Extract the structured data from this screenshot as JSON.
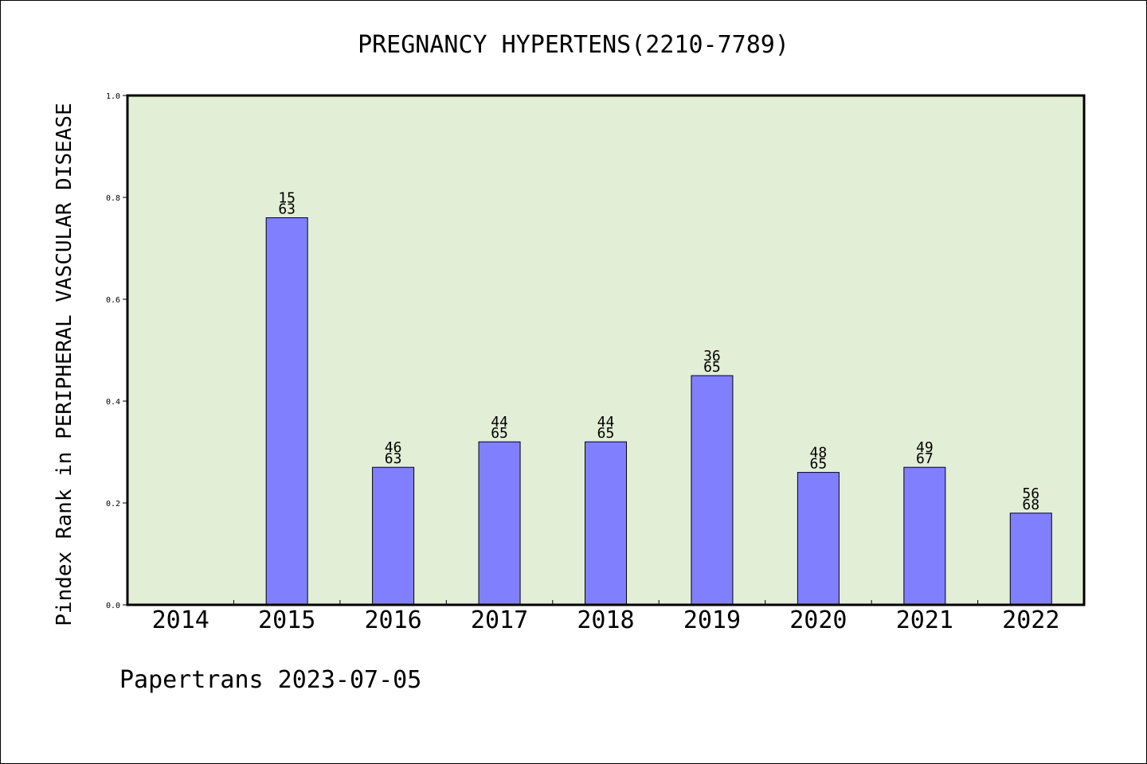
{
  "chart_data": {
    "type": "bar",
    "title": "PREGNANCY HYPERTENS(2210-7789)",
    "xlabel": "",
    "ylabel": "Pindex Rank in PERIPHERAL VASCULAR DISEASE",
    "categories": [
      "2014",
      "2015",
      "2016",
      "2017",
      "2018",
      "2019",
      "2020",
      "2021",
      "2022"
    ],
    "values": [
      null,
      0.76,
      0.27,
      0.32,
      0.32,
      0.45,
      0.26,
      0.27,
      0.18
    ],
    "labels": [
      null,
      {
        "top": "15",
        "bottom": "63"
      },
      {
        "top": "46",
        "bottom": "63"
      },
      {
        "top": "44",
        "bottom": "65"
      },
      {
        "top": "44",
        "bottom": "65"
      },
      {
        "top": "36",
        "bottom": "65"
      },
      {
        "top": "48",
        "bottom": "65"
      },
      {
        "top": "49",
        "bottom": "67"
      },
      {
        "top": "56",
        "bottom": "68"
      }
    ],
    "ylim": [
      0,
      1.0
    ],
    "yticks": [
      "0.0",
      "0.2",
      "0.4",
      "0.6",
      "0.8",
      "1.0"
    ],
    "grid": false,
    "colors": {
      "bar": "#8080ff",
      "plot_background": "#e2efd6",
      "axes": "#000000"
    }
  },
  "footer": "Papertrans 2023-07-05"
}
